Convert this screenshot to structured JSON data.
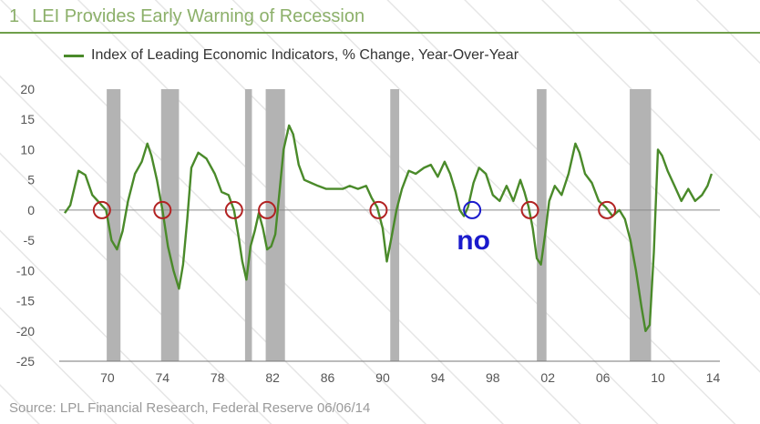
{
  "header": {
    "figure_number": "1",
    "title": "LEI Provides Early Warning of Recession"
  },
  "source": "Source: LPL Financial Research, Federal Reserve   06/06/14",
  "colors": {
    "title": "#8cb06a",
    "line": "#4a8a2a",
    "recession": "#b3b3b3",
    "marker_red": "#b22222",
    "marker_blue": "#1a1acc",
    "note": "#1a1acc"
  },
  "chart_data": {
    "type": "line",
    "title": "",
    "xlabel": "",
    "ylabel": "",
    "xlim": [
      1966.5,
      2014.5
    ],
    "ylim": [
      -25,
      20
    ],
    "grid": false,
    "legend": "top-left",
    "x_ticks": [
      {
        "value": 1970,
        "label": "70"
      },
      {
        "value": 1974,
        "label": "74"
      },
      {
        "value": 1978,
        "label": "78"
      },
      {
        "value": 1982,
        "label": "82"
      },
      {
        "value": 1986,
        "label": "86"
      },
      {
        "value": 1990,
        "label": "90"
      },
      {
        "value": 1994,
        "label": "94"
      },
      {
        "value": 1998,
        "label": "98"
      },
      {
        "value": 2002,
        "label": "02"
      },
      {
        "value": 2006,
        "label": "06"
      },
      {
        "value": 2010,
        "label": "10"
      },
      {
        "value": 2014,
        "label": "14"
      }
    ],
    "y_ticks": [
      20,
      15,
      10,
      5,
      0,
      -5,
      -10,
      -15,
      -20,
      -25
    ],
    "series": [
      {
        "name": "Index of Leading Economic Indicators, % Change, Year-Over-Year",
        "x": [
          1966.9,
          1967.3,
          1967.9,
          1968.4,
          1968.9,
          1969.5,
          1969.9,
          1970.3,
          1970.7,
          1971.1,
          1971.5,
          1972.0,
          1972.5,
          1972.9,
          1973.2,
          1973.6,
          1974.0,
          1974.4,
          1974.8,
          1975.2,
          1975.5,
          1975.8,
          1976.1,
          1976.6,
          1977.2,
          1977.8,
          1978.3,
          1978.8,
          1979.2,
          1979.5,
          1979.8,
          1980.1,
          1980.4,
          1980.7,
          1981.0,
          1981.3,
          1981.6,
          1981.9,
          1982.2,
          1982.5,
          1982.8,
          1983.2,
          1983.5,
          1983.9,
          1984.3,
          1984.8,
          1985.3,
          1985.9,
          1986.5,
          1987.1,
          1987.6,
          1988.2,
          1988.8,
          1989.2,
          1989.6,
          1990.0,
          1990.3,
          1990.6,
          1991.0,
          1991.4,
          1991.9,
          1992.4,
          1993.0,
          1993.5,
          1994.0,
          1994.5,
          1994.9,
          1995.3,
          1995.6,
          1995.9,
          1996.2,
          1996.6,
          1997.0,
          1997.5,
          1998.0,
          1998.5,
          1999.0,
          1999.5,
          2000.0,
          2000.3,
          2000.6,
          2000.9,
          2001.2,
          2001.5,
          2001.8,
          2002.1,
          2002.5,
          2003.0,
          2003.5,
          2004.0,
          2004.3,
          2004.7,
          2005.2,
          2005.7,
          2006.2,
          2006.7,
          2007.2,
          2007.6,
          2008.0,
          2008.4,
          2008.8,
          2009.1,
          2009.4,
          2009.7,
          2010.0,
          2010.3,
          2010.7,
          2011.2,
          2011.7,
          2012.2,
          2012.7,
          2013.2,
          2013.6,
          2013.9
        ],
        "values": [
          -0.5,
          0.8,
          6.5,
          5.8,
          2.5,
          1.0,
          0.0,
          -5.0,
          -6.5,
          -3.5,
          1.5,
          6.0,
          8.0,
          11.0,
          9.0,
          5.0,
          0.0,
          -6.0,
          -10.0,
          -13.0,
          -9.0,
          -1.5,
          7.0,
          9.5,
          8.5,
          6.0,
          3.0,
          2.5,
          0.0,
          -4.0,
          -8.5,
          -11.5,
          -6.0,
          -3.5,
          -0.5,
          -3.0,
          -6.5,
          -6.0,
          -4.0,
          3.0,
          10.0,
          14.0,
          12.5,
          7.5,
          5.0,
          4.5,
          4.0,
          3.5,
          3.5,
          3.5,
          4.0,
          3.5,
          4.0,
          2.0,
          0.5,
          -3.0,
          -8.5,
          -5.0,
          0.0,
          3.5,
          6.5,
          6.0,
          7.0,
          7.5,
          5.5,
          8.0,
          6.0,
          3.0,
          0.0,
          -1.0,
          0.5,
          4.5,
          7.0,
          6.0,
          2.5,
          1.5,
          4.0,
          1.5,
          5.0,
          3.0,
          0.5,
          -3.0,
          -8.0,
          -9.0,
          -4.0,
          1.5,
          4.0,
          2.5,
          6.0,
          11.0,
          9.5,
          6.0,
          4.5,
          1.5,
          0.5,
          -1.0,
          0.0,
          -1.5,
          -5.0,
          -10.0,
          -16.0,
          -20.0,
          -19.0,
          -7.0,
          10.0,
          9.0,
          6.5,
          4.0,
          1.5,
          3.5,
          1.5,
          2.5,
          4.0,
          6.0
        ]
      }
    ],
    "recessions": [
      [
        1969.95,
        1970.95
      ],
      [
        1973.9,
        1975.2
      ],
      [
        1980.0,
        1980.5
      ],
      [
        1981.5,
        1982.9
      ],
      [
        1990.55,
        1991.2
      ],
      [
        2001.2,
        2001.9
      ],
      [
        2007.95,
        2009.5
      ]
    ],
    "markers": [
      {
        "x": 1969.6,
        "y": 0,
        "color": "red"
      },
      {
        "x": 1974.0,
        "y": 0,
        "color": "red"
      },
      {
        "x": 1979.2,
        "y": 0,
        "color": "red"
      },
      {
        "x": 1981.6,
        "y": 0,
        "color": "red"
      },
      {
        "x": 1989.7,
        "y": 0,
        "color": "red"
      },
      {
        "x": 1996.5,
        "y": 0,
        "color": "blue"
      },
      {
        "x": 2000.7,
        "y": 0,
        "color": "red"
      },
      {
        "x": 2006.3,
        "y": 0,
        "color": "red"
      }
    ],
    "annotations": [
      {
        "text": "no",
        "x": 1996.6,
        "y": -5.0
      }
    ]
  }
}
